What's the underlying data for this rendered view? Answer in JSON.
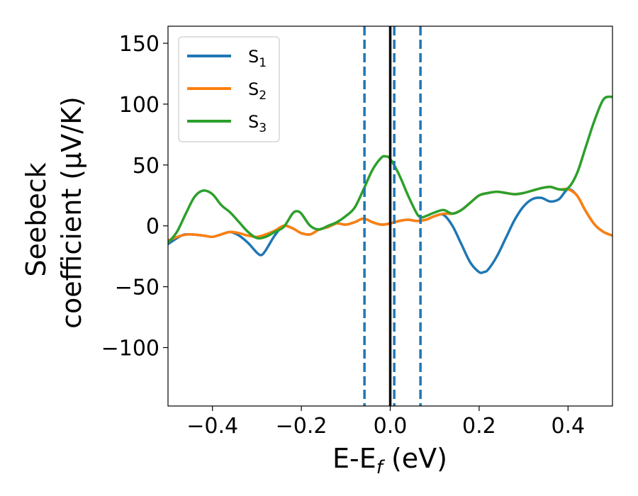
{
  "chart_data": {
    "type": "line",
    "title": "",
    "xlabel": "E-E",
    "xlabel_sub": "f",
    "xlabel_unit": " (eV)",
    "ylabel_line1": "Seebeck",
    "ylabel_line2": "coefficient  (μV/K)",
    "xlim": [
      -0.5,
      0.5
    ],
    "ylim": [
      -148,
      164
    ],
    "xticks": [
      -0.4,
      -0.2,
      0.0,
      0.2,
      0.4
    ],
    "xtick_labels": [
      "−0.4",
      "−0.2",
      "0.0",
      "0.2",
      "0.4"
    ],
    "yticks": [
      -100,
      -50,
      0,
      50,
      100,
      150
    ],
    "ytick_labels": [
      "−100",
      "−50",
      "0",
      "50",
      "100",
      "150"
    ],
    "grid": false,
    "legend_position": "top-left",
    "series": [
      {
        "name": "S",
        "sub": "1",
        "color": "#1f77b4",
        "points": [
          [
            -0.5,
            -15
          ],
          [
            -0.47,
            -8
          ],
          [
            -0.45,
            -7
          ],
          [
            -0.42,
            -8
          ],
          [
            -0.4,
            -9
          ],
          [
            -0.38,
            -7
          ],
          [
            -0.36,
            -5
          ],
          [
            -0.34,
            -8
          ],
          [
            -0.32,
            -14
          ],
          [
            -0.3,
            -22
          ],
          [
            -0.29,
            -24
          ],
          [
            -0.28,
            -20
          ],
          [
            -0.26,
            -8
          ],
          [
            -0.24,
            0
          ],
          [
            -0.22,
            -2
          ],
          [
            -0.2,
            -6
          ],
          [
            -0.18,
            -7
          ],
          [
            -0.16,
            -3
          ],
          [
            -0.14,
            -1
          ],
          [
            -0.12,
            2
          ],
          [
            -0.1,
            1
          ],
          [
            -0.08,
            3
          ],
          [
            -0.06,
            6
          ],
          [
            -0.04,
            3
          ],
          [
            -0.02,
            1
          ],
          [
            0.0,
            2
          ],
          [
            0.02,
            4
          ],
          [
            0.04,
            5
          ],
          [
            0.06,
            4
          ],
          [
            0.08,
            5
          ],
          [
            0.1,
            8
          ],
          [
            0.12,
            9
          ],
          [
            0.14,
            0
          ],
          [
            0.16,
            -15
          ],
          [
            0.18,
            -30
          ],
          [
            0.2,
            -38
          ],
          [
            0.21,
            -38
          ],
          [
            0.22,
            -36
          ],
          [
            0.24,
            -25
          ],
          [
            0.26,
            -10
          ],
          [
            0.28,
            5
          ],
          [
            0.3,
            16
          ],
          [
            0.32,
            22
          ],
          [
            0.34,
            23
          ],
          [
            0.36,
            20
          ],
          [
            0.38,
            22
          ],
          [
            0.4,
            30
          ],
          [
            0.42,
            25
          ],
          [
            0.44,
            12
          ],
          [
            0.46,
            1
          ],
          [
            0.48,
            -5
          ],
          [
            0.5,
            -8
          ]
        ]
      },
      {
        "name": "S",
        "sub": "2",
        "color": "#ff7f0e",
        "points": [
          [
            -0.5,
            -12
          ],
          [
            -0.47,
            -8
          ],
          [
            -0.45,
            -7
          ],
          [
            -0.42,
            -8
          ],
          [
            -0.4,
            -9
          ],
          [
            -0.38,
            -7
          ],
          [
            -0.36,
            -5
          ],
          [
            -0.34,
            -6
          ],
          [
            -0.32,
            -8
          ],
          [
            -0.3,
            -9
          ],
          [
            -0.28,
            -7
          ],
          [
            -0.26,
            -4
          ],
          [
            -0.24,
            0
          ],
          [
            -0.22,
            -2
          ],
          [
            -0.2,
            -6
          ],
          [
            -0.18,
            -7
          ],
          [
            -0.16,
            -3
          ],
          [
            -0.14,
            -1
          ],
          [
            -0.12,
            2
          ],
          [
            -0.1,
            1
          ],
          [
            -0.08,
            3
          ],
          [
            -0.06,
            6
          ],
          [
            -0.04,
            3
          ],
          [
            -0.02,
            1
          ],
          [
            0.0,
            2
          ],
          [
            0.02,
            4
          ],
          [
            0.04,
            5
          ],
          [
            0.06,
            4
          ],
          [
            0.08,
            5
          ],
          [
            0.1,
            8
          ],
          [
            0.12,
            10
          ],
          [
            0.14,
            10
          ],
          [
            0.16,
            13
          ],
          [
            0.18,
            19
          ],
          [
            0.2,
            25
          ],
          [
            0.22,
            27
          ],
          [
            0.24,
            28
          ],
          [
            0.26,
            27
          ],
          [
            0.28,
            26
          ],
          [
            0.3,
            27
          ],
          [
            0.32,
            29
          ],
          [
            0.34,
            31
          ],
          [
            0.36,
            32
          ],
          [
            0.38,
            30
          ],
          [
            0.4,
            30
          ],
          [
            0.42,
            25
          ],
          [
            0.44,
            12
          ],
          [
            0.46,
            1
          ],
          [
            0.48,
            -5
          ],
          [
            0.5,
            -8
          ]
        ]
      },
      {
        "name": "S",
        "sub": "3",
        "color": "#2ca02c",
        "points": [
          [
            -0.5,
            -14
          ],
          [
            -0.48,
            -5
          ],
          [
            -0.46,
            10
          ],
          [
            -0.44,
            24
          ],
          [
            -0.42,
            29
          ],
          [
            -0.4,
            26
          ],
          [
            -0.38,
            17
          ],
          [
            -0.36,
            11
          ],
          [
            -0.34,
            3
          ],
          [
            -0.32,
            -5
          ],
          [
            -0.3,
            -10
          ],
          [
            -0.28,
            -9
          ],
          [
            -0.26,
            -5
          ],
          [
            -0.24,
            -1
          ],
          [
            -0.22,
            10
          ],
          [
            -0.21,
            12
          ],
          [
            -0.2,
            10
          ],
          [
            -0.18,
            0
          ],
          [
            -0.16,
            -3
          ],
          [
            -0.14,
            0
          ],
          [
            -0.12,
            3
          ],
          [
            -0.1,
            8
          ],
          [
            -0.08,
            15
          ],
          [
            -0.06,
            30
          ],
          [
            -0.04,
            46
          ],
          [
            -0.02,
            56
          ],
          [
            -0.01,
            57
          ],
          [
            0.0,
            55
          ],
          [
            0.02,
            42
          ],
          [
            0.04,
            25
          ],
          [
            0.06,
            10
          ],
          [
            0.07,
            7
          ],
          [
            0.08,
            8
          ],
          [
            0.1,
            11
          ],
          [
            0.12,
            13
          ],
          [
            0.14,
            10
          ],
          [
            0.16,
            13
          ],
          [
            0.18,
            19
          ],
          [
            0.2,
            25
          ],
          [
            0.22,
            27
          ],
          [
            0.24,
            28
          ],
          [
            0.26,
            27
          ],
          [
            0.28,
            26
          ],
          [
            0.3,
            27
          ],
          [
            0.32,
            29
          ],
          [
            0.34,
            31
          ],
          [
            0.36,
            32
          ],
          [
            0.38,
            30
          ],
          [
            0.4,
            31
          ],
          [
            0.42,
            43
          ],
          [
            0.44,
            65
          ],
          [
            0.46,
            87
          ],
          [
            0.48,
            104
          ],
          [
            0.5,
            106
          ]
        ]
      }
    ],
    "vlines": [
      {
        "x": -0.058,
        "style": "dashed",
        "color": "#1f77b4"
      },
      {
        "x": 0.0,
        "style": "solid",
        "color": "#000000"
      },
      {
        "x": 0.009,
        "style": "dashed",
        "color": "#1f77b4"
      },
      {
        "x": 0.068,
        "style": "dashed",
        "color": "#1f77b4"
      }
    ]
  }
}
